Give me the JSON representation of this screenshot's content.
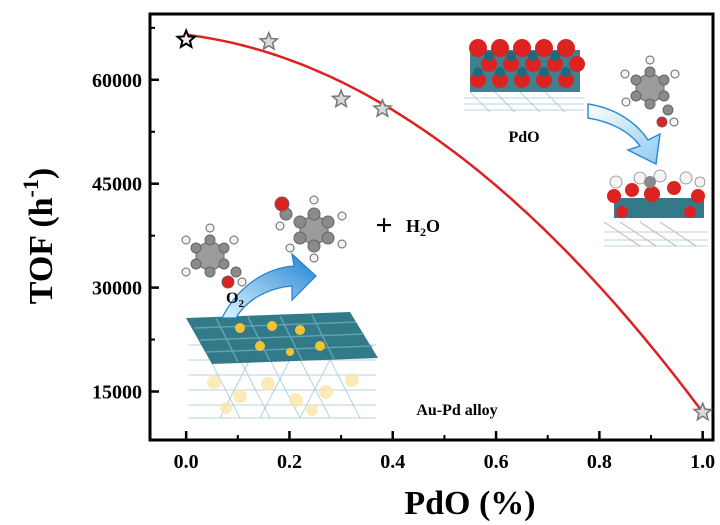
{
  "chart_data": {
    "type": "scatter",
    "xlabel": "PdO (%)",
    "ylabel": "TOF (h",
    "ylabel_sup": "-1",
    "ylabel_close": ")",
    "xlim": [
      -0.07,
      1.02
    ],
    "ylim": [
      8000,
      69500
    ],
    "xticks": [
      0.0,
      0.2,
      0.4,
      0.6,
      0.8,
      1.0
    ],
    "xtick_labels": [
      "0.0",
      "0.2",
      "0.4",
      "0.6",
      "0.8",
      "1.0"
    ],
    "yticks": [
      15000,
      30000,
      45000,
      60000
    ],
    "ytick_labels": [
      "15000",
      "30000",
      "45000",
      "60000"
    ],
    "series": [
      {
        "marker": "star",
        "points": [
          {
            "x": 0.0,
            "y": 65800
          },
          {
            "x": 0.16,
            "y": 65500
          },
          {
            "x": 0.3,
            "y": 57200
          },
          {
            "x": 0.38,
            "y": 55800
          },
          {
            "x": 1.0,
            "y": 12000
          }
        ]
      }
    ],
    "fit_curve": {
      "type": "quadratic",
      "coefficients": [
        66500,
        -9000,
        -45500
      ],
      "color": "#e02020"
    },
    "grid": false,
    "annotations": {
      "pdo": "PdO",
      "h2o_plus": "+",
      "h2o_h": "H",
      "h2o_sub": "2",
      "h2o_o": "O",
      "o2_o": "O",
      "o2_sub": "2",
      "alloy": "Au-Pd alloy"
    },
    "colors": {
      "curve": "#e02020",
      "pd": "#1d6b7c",
      "au": "#f2c335",
      "o": "#dd2222",
      "c": "#8a8a8a",
      "h": "#f4f4f4",
      "arrow": "#2c8ed6"
    }
  }
}
